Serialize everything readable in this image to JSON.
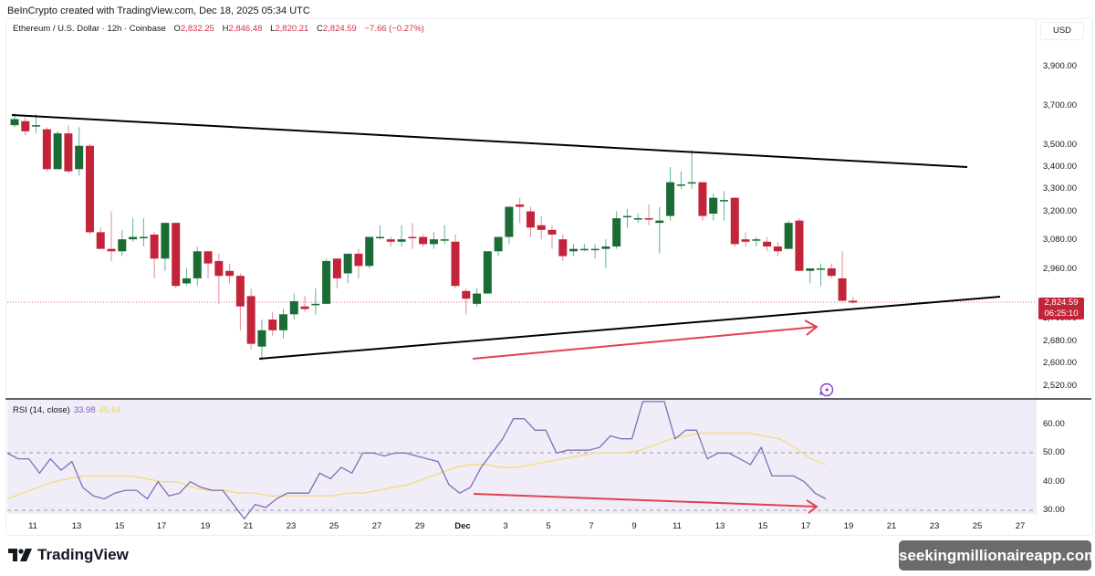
{
  "header": {
    "credit": "BeInCrypto created with TradingView.com, Dec 18, 2025 05:34 UTC",
    "symbol": "Ethereum / U.S. Dollar · 12h · Coinbase",
    "open_label": "O",
    "open": "2,832.25",
    "high_label": "H",
    "high": "2,846.48",
    "low_label": "L",
    "low": "2,820.21",
    "close_label": "C",
    "close": "2,824.59",
    "change": "−7.66 (−0.27%)"
  },
  "price_axis": {
    "currency": "USD",
    "ticks": [
      "3,900.00",
      "3,700.00",
      "3,500.00",
      "3,400.00",
      "3,300.00",
      "3,200.00",
      "3,080.00",
      "2,960.00",
      "2,760.00",
      "2,680.00",
      "2,600.00",
      "2,520.00"
    ],
    "current_price": "2,824.59",
    "countdown": "06:25:10"
  },
  "rsi": {
    "label": "RSI (14, close)",
    "value": "33.98",
    "ma_value": "45.64",
    "ticks": [
      "60.00",
      "50.00",
      "40.00",
      "30.00"
    ]
  },
  "time_axis": {
    "ticks": [
      "11",
      "13",
      "15",
      "17",
      "19",
      "21",
      "23",
      "25",
      "27",
      "29",
      "Dec",
      "3",
      "5",
      "7",
      "9",
      "11",
      "13",
      "15",
      "17",
      "19",
      "21",
      "23",
      "25",
      "27"
    ]
  },
  "footer": {
    "brand": "TradingView",
    "watermark": "seekingmillionaireapp.com"
  },
  "colors": {
    "up": "#1b6b35",
    "down": "#c2243a",
    "rsi_line": "#7e6fb8",
    "rsi_ma": "#f5dc8a",
    "trendline": "#000000",
    "annotation_arrow": "#e0424f"
  },
  "chart_data": [
    {
      "type": "candlestick",
      "title": "Ethereum / U.S. Dollar · 12h · Coinbase",
      "ylabel": "USD",
      "ylim": [
        2500,
        3950
      ],
      "x_labels": [
        "Nov 11",
        "Nov 13",
        "Nov 15",
        "Nov 17",
        "Nov 19",
        "Nov 21",
        "Nov 23",
        "Nov 25",
        "Nov 27",
        "Nov 29",
        "Dec 1",
        "Dec 3",
        "Dec 5",
        "Dec 7",
        "Dec 9",
        "Dec 11",
        "Dec 13",
        "Dec 15",
        "Dec 17"
      ],
      "candles_ohlc": [
        [
          3600,
          3660,
          3590,
          3630
        ],
        [
          3620,
          3640,
          3550,
          3570
        ],
        [
          3600,
          3655,
          3560,
          3600
        ],
        [
          3580,
          3590,
          3380,
          3390
        ],
        [
          3390,
          3570,
          3390,
          3560
        ],
        [
          3560,
          3600,
          3370,
          3380
        ],
        [
          3390,
          3590,
          3360,
          3500
        ],
        [
          3500,
          3510,
          3100,
          3110
        ],
        [
          3110,
          3130,
          3060,
          3040
        ],
        [
          3040,
          3200,
          2990,
          3030
        ],
        [
          3030,
          3120,
          3010,
          3080
        ],
        [
          3080,
          3170,
          3070,
          3090
        ],
        [
          3090,
          3170,
          3050,
          3090
        ],
        [
          3100,
          3110,
          2920,
          3000
        ],
        [
          3000,
          3150,
          2950,
          3150
        ],
        [
          3150,
          3150,
          2880,
          2890
        ],
        [
          2900,
          2960,
          2890,
          2920
        ],
        [
          2920,
          3050,
          2890,
          3030
        ],
        [
          3030,
          3030,
          2920,
          2980
        ],
        [
          2990,
          3020,
          2820,
          2930
        ],
        [
          2950,
          2980,
          2900,
          2930
        ],
        [
          2930,
          2940,
          2720,
          2810
        ],
        [
          2850,
          2880,
          2650,
          2670
        ],
        [
          2660,
          2760,
          2610,
          2720
        ],
        [
          2760,
          2790,
          2700,
          2720
        ],
        [
          2720,
          2800,
          2690,
          2780
        ],
        [
          2780,
          2860,
          2760,
          2830
        ],
        [
          2810,
          2850,
          2790,
          2800
        ],
        [
          2820,
          2880,
          2780,
          2820
        ],
        [
          2820,
          3000,
          2830,
          2990
        ],
        [
          3000,
          3000,
          2880,
          2920
        ],
        [
          2940,
          3010,
          2900,
          3020
        ],
        [
          3020,
          3040,
          2920,
          2970
        ],
        [
          2970,
          3090,
          2960,
          3090
        ],
        [
          3090,
          3140,
          3080,
          3090
        ],
        [
          3080,
          3090,
          3050,
          3070
        ],
        [
          3070,
          3140,
          3050,
          3080
        ],
        [
          3090,
          3150,
          3040,
          3085
        ],
        [
          3090,
          3100,
          3050,
          3060
        ],
        [
          3060,
          3110,
          3040,
          3080
        ],
        [
          3080,
          3140,
          3060,
          3080
        ],
        [
          3070,
          3100,
          2880,
          2890
        ],
        [
          2870,
          2880,
          2780,
          2840
        ],
        [
          2820,
          2880,
          2810,
          2860
        ],
        [
          2860,
          3030,
          2860,
          3030
        ],
        [
          3030,
          3080,
          3010,
          3090
        ],
        [
          3090,
          3200,
          3060,
          3220
        ],
        [
          3230,
          3260,
          3150,
          3220
        ],
        [
          3200,
          3220,
          3090,
          3130
        ],
        [
          3140,
          3180,
          3080,
          3120
        ],
        [
          3120,
          3140,
          3040,
          3100
        ],
        [
          3080,
          3100,
          2990,
          3010
        ],
        [
          3030,
          3060,
          3010,
          3040
        ],
        [
          3040,
          3060,
          3030,
          3040
        ],
        [
          3040,
          3060,
          3000,
          3040
        ],
        [
          3040,
          3080,
          2960,
          3050
        ],
        [
          3050,
          3200,
          3040,
          3170
        ],
        [
          3180,
          3210,
          3130,
          3180
        ],
        [
          3170,
          3190,
          3150,
          3170
        ],
        [
          3170,
          3230,
          3140,
          3165
        ],
        [
          3150,
          3220,
          3020,
          3160
        ],
        [
          3180,
          3400,
          3160,
          3330
        ],
        [
          3320,
          3380,
          3300,
          3320
        ],
        [
          3330,
          3480,
          3300,
          3330
        ],
        [
          3330,
          3330,
          3160,
          3180
        ],
        [
          3190,
          3280,
          3160,
          3260
        ],
        [
          3250,
          3290,
          3160,
          3250
        ],
        [
          3260,
          3260,
          3050,
          3060
        ],
        [
          3080,
          3110,
          3050,
          3070
        ],
        [
          3080,
          3090,
          3050,
          3080
        ],
        [
          3070,
          3090,
          3030,
          3050
        ],
        [
          3050,
          3070,
          3010,
          3030
        ],
        [
          3040,
          3160,
          3040,
          3150
        ],
        [
          3160,
          3170,
          2950,
          2950
        ],
        [
          2950,
          2950,
          2900,
          2960
        ],
        [
          2960,
          2980,
          2890,
          2960
        ],
        [
          2960,
          2980,
          2920,
          2930
        ],
        [
          2920,
          3030,
          2830,
          2832
        ],
        [
          2832,
          2846,
          2820,
          2825
        ]
      ],
      "trendlines": [
        {
          "name": "descending resistance",
          "from": {
            "date": "Nov 10",
            "price": 3660
          },
          "to": {
            "date": "Dec 24",
            "price": 3410
          }
        },
        {
          "name": "ascending support",
          "from": {
            "date": "Nov 21",
            "price": 2620
          },
          "to": {
            "date": "Dec 27",
            "price": 2860
          }
        }
      ],
      "annotations": [
        "Red arrow: higher lows in price (Dec 1 → Dec 17)"
      ],
      "current_price": 2824.59
    },
    {
      "type": "line",
      "title": "RSI (14, close)",
      "ylim": [
        28,
        68
      ],
      "reference_lines": [
        50,
        30
      ],
      "series": [
        {
          "name": "RSI",
          "values": [
            50,
            48,
            48,
            43,
            48,
            44,
            47,
            38,
            35,
            34,
            36,
            37,
            37,
            34,
            40,
            35,
            36,
            40,
            38,
            37,
            37,
            32,
            27,
            32,
            31,
            34,
            36,
            36,
            36,
            43,
            41,
            45,
            43,
            50,
            50,
            49,
            50,
            50,
            49,
            48,
            47,
            39,
            36,
            38,
            45,
            50,
            55,
            62,
            62,
            58,
            58,
            50,
            51,
            51,
            51,
            52,
            56,
            55,
            55,
            68,
            68,
            68,
            55,
            58,
            58,
            48,
            50,
            50,
            48,
            46,
            52,
            42,
            42,
            42,
            40,
            36,
            34
          ]
        },
        {
          "name": "RSI MA",
          "values": [
            34,
            36,
            38,
            40,
            41,
            42,
            42,
            42,
            42,
            41,
            40,
            40,
            38,
            37,
            37,
            36,
            36,
            35,
            35,
            35,
            35,
            35,
            36,
            36,
            37,
            38,
            39,
            41,
            43,
            45,
            46,
            46,
            45,
            45,
            46,
            47,
            48,
            49,
            50,
            50,
            50,
            51,
            53,
            55,
            56,
            57,
            57,
            57,
            57,
            56,
            55,
            52,
            48,
            46
          ]
        }
      ],
      "annotations": [
        "Red arrow: lower lows in RSI (bullish divergence)"
      ],
      "last_values": {
        "RSI": 33.98,
        "RSI MA": 45.64
      }
    }
  ]
}
